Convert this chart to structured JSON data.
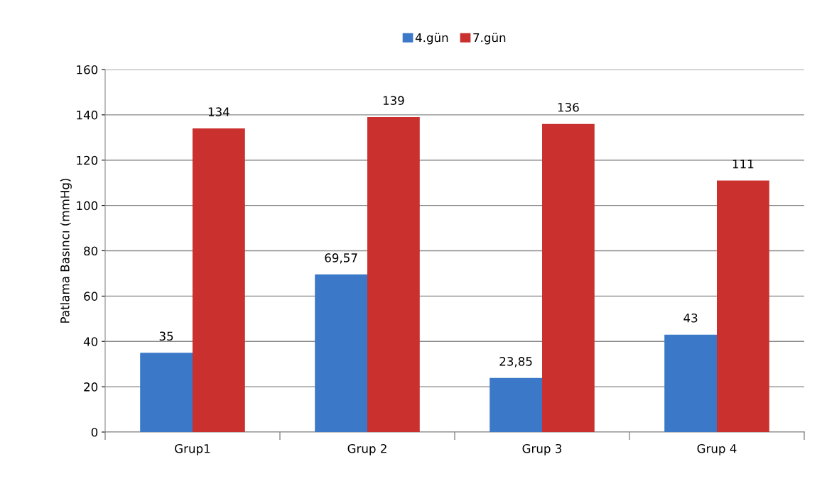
{
  "chart_data": {
    "type": "bar",
    "ylabel": "Patlama Basıncı (mmHg)",
    "categories": [
      "Grup1",
      "Grup 2",
      "Grup 3",
      "Grup 4"
    ],
    "series": [
      {
        "name": "4.gün",
        "color": "#3b78c8",
        "values": [
          35,
          69.57,
          23.85,
          43
        ],
        "value_labels": [
          "35",
          "69,57",
          "23,85",
          "43"
        ]
      },
      {
        "name": "7.gün",
        "color": "#c9302e",
        "values": [
          134,
          139,
          136,
          111
        ],
        "value_labels": [
          "134",
          "139",
          "136",
          "111"
        ]
      }
    ],
    "ylim": [
      0,
      160
    ],
    "yticks": [
      0,
      20,
      40,
      60,
      80,
      100,
      120,
      140,
      160
    ],
    "grid": "y",
    "legend": "top"
  }
}
